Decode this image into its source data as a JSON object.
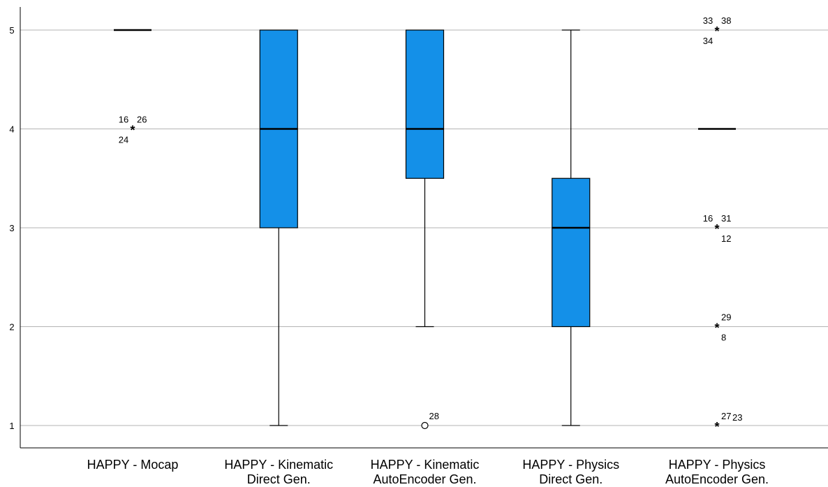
{
  "chart_data": {
    "type": "boxplot",
    "title": "",
    "xlabel": "",
    "ylabel": "",
    "ylim": [
      0.78,
      5.22
    ],
    "yticks": [
      1,
      2,
      3,
      4,
      5
    ],
    "ytick_labels": [
      "1",
      "2",
      "3",
      "4",
      "5"
    ],
    "grid": true,
    "box_color": "#1490E8",
    "categories": [
      {
        "line1": "HAPPY - Mocap",
        "line2": ""
      },
      {
        "line1": "HAPPY - Kinematic",
        "line2": "Direct Gen."
      },
      {
        "line1": "HAPPY - Kinematic",
        "line2": "AutoEncoder Gen."
      },
      {
        "line1": "HAPPY - Physics",
        "line2": "Direct Gen."
      },
      {
        "line1": "HAPPY - Physics",
        "line2": "AutoEncoder Gen."
      }
    ],
    "boxes": [
      {
        "whisker_low": 5,
        "q1": 5,
        "median": 5,
        "q3": 5,
        "whisker_high": 5
      },
      {
        "whisker_low": 1,
        "q1": 3,
        "median": 4,
        "q3": 5,
        "whisker_high": 5
      },
      {
        "whisker_low": 2,
        "q1": 3.5,
        "median": 4,
        "q3": 5,
        "whisker_high": 5
      },
      {
        "whisker_low": 1,
        "q1": 2,
        "median": 3,
        "q3": 3.5,
        "whisker_high": 5
      },
      {
        "whisker_low": 4,
        "q1": 4,
        "median": 4,
        "q3": 4,
        "whisker_high": 4
      }
    ],
    "outliers": [
      {
        "box": 0,
        "value": 4,
        "symbol": "star",
        "labels": [
          {
            "text": "16",
            "pos": "tl"
          },
          {
            "text": "26",
            "pos": "tr"
          },
          {
            "text": "24",
            "pos": "bl"
          }
        ]
      },
      {
        "box": 2,
        "value": 1,
        "symbol": "circle",
        "labels": [
          {
            "text": "28",
            "pos": "tr"
          }
        ]
      },
      {
        "box": 4,
        "value": 5,
        "symbol": "star",
        "labels": [
          {
            "text": "33",
            "pos": "tl"
          },
          {
            "text": "38",
            "pos": "tr"
          },
          {
            "text": "34",
            "pos": "bl"
          }
        ]
      },
      {
        "box": 4,
        "value": 3,
        "symbol": "star",
        "labels": [
          {
            "text": "16",
            "pos": "tl"
          },
          {
            "text": "31",
            "pos": "tr"
          },
          {
            "text": "12",
            "pos": "br"
          }
        ]
      },
      {
        "box": 4,
        "value": 2,
        "symbol": "star",
        "labels": [
          {
            "text": "29",
            "pos": "tr"
          },
          {
            "text": "8",
            "pos": "br"
          }
        ]
      },
      {
        "box": 4,
        "value": 1,
        "symbol": "star",
        "labels": [
          {
            "text": "27",
            "pos": "tr"
          },
          {
            "text": "23",
            "pos": "tr2"
          }
        ]
      }
    ]
  }
}
